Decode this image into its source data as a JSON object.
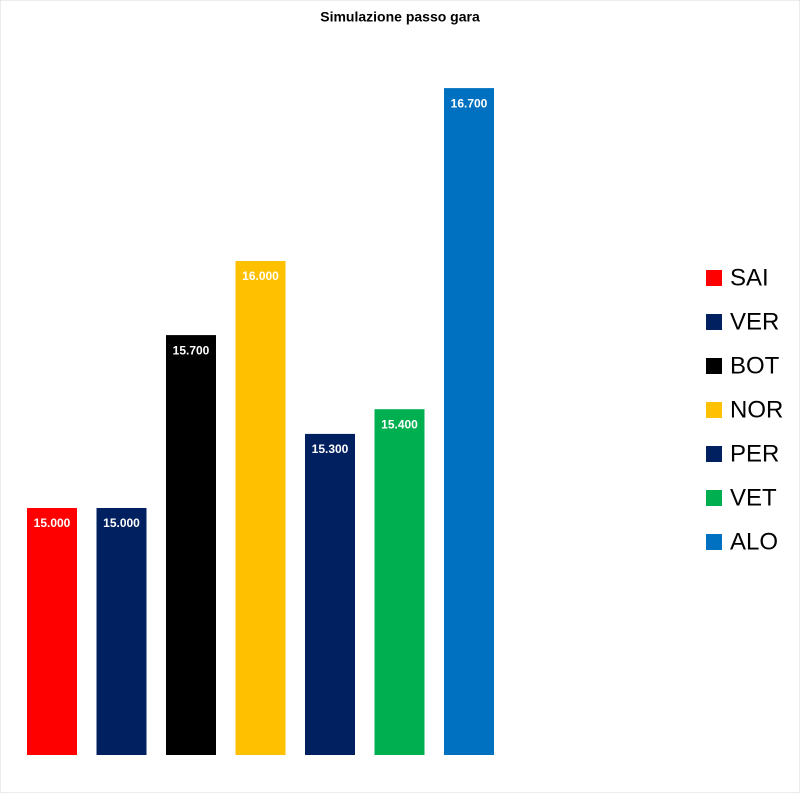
{
  "chart_data": {
    "type": "bar",
    "title": "Simulazione passo gara",
    "categories": [
      null
    ],
    "series": [
      {
        "name": "SAI",
        "color": "#ff0000",
        "values": [
          15.0
        ],
        "value_labels": [
          "15.000"
        ]
      },
      {
        "name": "VER",
        "color": "#002060",
        "values": [
          15.0
        ],
        "value_labels": [
          "15.000"
        ]
      },
      {
        "name": "BOT",
        "color": "#000000",
        "values": [
          15.7
        ],
        "value_labels": [
          "15.700"
        ]
      },
      {
        "name": "NOR",
        "color": "#ffc000",
        "values": [
          16.0
        ],
        "value_labels": [
          "16.000"
        ]
      },
      {
        "name": "PER",
        "color": "#002060",
        "values": [
          15.3
        ],
        "value_labels": [
          "15.300"
        ]
      },
      {
        "name": "VET",
        "color": "#00b050",
        "values": [
          15.4
        ],
        "value_labels": [
          "15.400"
        ]
      },
      {
        "name": "ALO",
        "color": "#0070c0",
        "values": [
          16.7
        ],
        "value_labels": [
          "16.700"
        ]
      }
    ],
    "ylim": [
      14,
      17
    ],
    "legend": "right"
  }
}
